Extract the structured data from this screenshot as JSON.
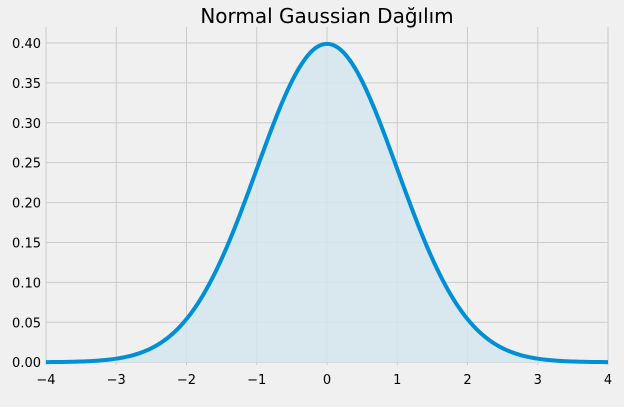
{
  "chart_data": {
    "type": "area",
    "title": "Normal Gaussian Dağılım",
    "xlabel": "",
    "ylabel": "",
    "xlim": [
      -4,
      4
    ],
    "ylim": [
      -0.0035,
      0.42
    ],
    "x_ticks": [
      -4,
      -3,
      -2,
      -1,
      0,
      1,
      2,
      3,
      4
    ],
    "x_tick_labels": [
      "−4",
      "−3",
      "−2",
      "−1",
      "0",
      "1",
      "2",
      "3",
      "4"
    ],
    "y_ticks": [
      0.0,
      0.05,
      0.1,
      0.15,
      0.2,
      0.25,
      0.3,
      0.35,
      0.4
    ],
    "y_tick_labels": [
      "0.00",
      "0.05",
      "0.10",
      "0.15",
      "0.20",
      "0.25",
      "0.30",
      "0.35",
      "0.40"
    ],
    "grid": true,
    "series": [
      {
        "x": [
          -4.0,
          -3.5,
          -3.0,
          -2.5,
          -2.0,
          -1.5,
          -1.0,
          -0.5,
          0.0,
          0.5,
          1.0,
          1.5,
          2.0,
          2.5,
          3.0,
          3.5,
          4.0
        ],
        "values": [
          0.0001,
          0.0009,
          0.0044,
          0.0175,
          0.054,
          0.1295,
          0.242,
          0.3521,
          0.3989,
          0.3521,
          0.242,
          0.1295,
          0.054,
          0.0175,
          0.0044,
          0.0009,
          0.0001
        ],
        "line_color": "#008fd5",
        "fill_color": "#d5e5ee"
      }
    ]
  },
  "colors": {
    "background": "#f0f0f0",
    "grid": "#cbcbcb"
  }
}
